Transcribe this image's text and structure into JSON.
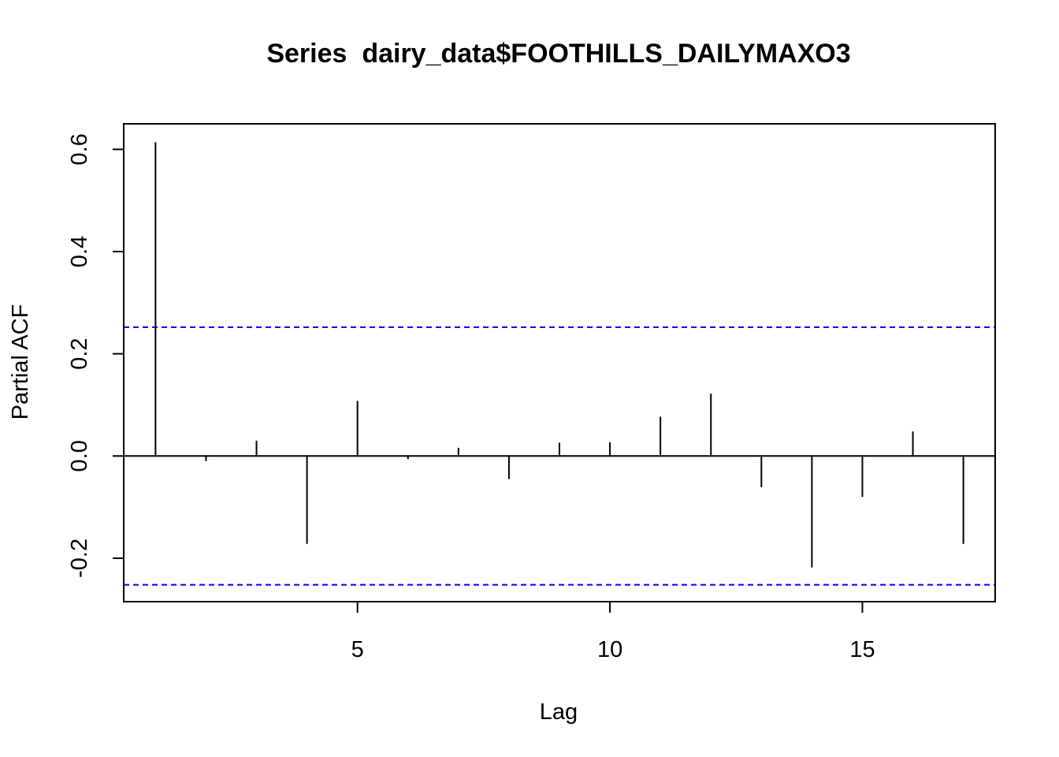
{
  "chart_data": {
    "type": "bar",
    "subtype": "partial-acf-spikes",
    "title": "Series  dairy_data$FOOTHILLS_DAILYMAXO3",
    "xlabel": "Lag",
    "ylabel": "Partial ACF",
    "xlim": [
      0.37,
      17.63
    ],
    "ylim": [
      -0.285,
      0.65
    ],
    "x_ticks": [
      5,
      10,
      15
    ],
    "y_ticks": [
      -0.2,
      0.0,
      0.2,
      0.4,
      0.6
    ],
    "y_tick_labels": [
      "-0.2",
      "0.0",
      "0.2",
      "0.4",
      "0.6"
    ],
    "x": [
      1,
      2,
      3,
      4,
      5,
      6,
      7,
      8,
      9,
      10,
      11,
      12,
      13,
      14,
      15,
      16,
      17
    ],
    "values": [
      0.614,
      -0.01,
      0.03,
      -0.172,
      0.108,
      -0.006,
      0.016,
      -0.045,
      0.026,
      0.027,
      0.077,
      0.122,
      -0.061,
      -0.218,
      -0.08,
      0.048,
      -0.172
    ],
    "confidence_bound": 0.252,
    "zero_line": true,
    "grid": false,
    "colors": {
      "spike": "#000000",
      "bounds": "#0000ff",
      "zero_line": "#000000"
    }
  }
}
